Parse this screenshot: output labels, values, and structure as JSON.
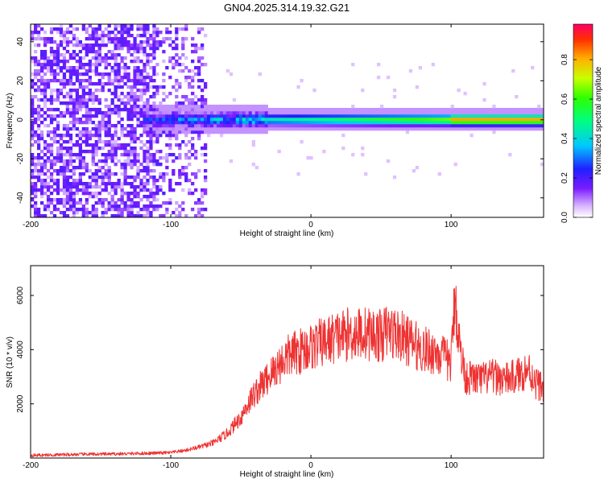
{
  "chart_data": [
    {
      "type": "heatmap",
      "title": "GN04.2025.314.19.32.G21",
      "xlabel": "Height of straight line (km)",
      "ylabel": "Frequency (Hz)",
      "xlim": [
        -200,
        166
      ],
      "ylim": [
        -50,
        49
      ],
      "xticks": [
        -200,
        -100,
        0,
        100
      ],
      "yticks": [
        -40,
        -20,
        0,
        20,
        40
      ],
      "colorbar": {
        "label": "Normalized spectral amplitude",
        "range": [
          0,
          0.98
        ],
        "ticks": [
          0.0,
          0.2,
          0.4,
          0.6,
          0.8
        ],
        "tick_labels": [
          "0.0",
          "0.2",
          "0.4",
          "0.6",
          "0.8"
        ],
        "colormap": "rainbow-white-violet-blue-cyan-green-yellow-red"
      },
      "features": {
        "signal_line_frequency_hz": 0,
        "noise_region_x": [
          -200,
          -75
        ],
        "signal_band_start_x": -120,
        "peak_amplitude_x": [
          100,
          166
        ]
      }
    },
    {
      "type": "line",
      "xlabel": "Height of straight line (km)",
      "ylabel": "SNR (10 * v/v)",
      "xlim": [
        -200,
        166
      ],
      "ylim": [
        0,
        7100
      ],
      "xticks": [
        -200,
        -100,
        0,
        100
      ],
      "yticks": [
        2000,
        4000,
        6000
      ],
      "color": "#ee3333",
      "series": [
        {
          "x": [
            -200,
            -180,
            -160,
            -140,
            -120,
            -100,
            -90,
            -80,
            -70,
            -60,
            -50,
            -45,
            -40,
            -35,
            -30,
            -25,
            -20,
            -15,
            -10,
            -5,
            0,
            10,
            20,
            30,
            40,
            50,
            55,
            60,
            70,
            80,
            90,
            95,
            100,
            103,
            105,
            110,
            120,
            130,
            140,
            150,
            155,
            160,
            166
          ],
          "values": [
            100,
            120,
            140,
            150,
            170,
            200,
            280,
            400,
            550,
            900,
            1500,
            2000,
            2400,
            2700,
            3000,
            3300,
            3600,
            3800,
            3900,
            4000,
            4100,
            4300,
            4500,
            4600,
            4600,
            4500,
            4700,
            4600,
            4300,
            4000,
            3900,
            3700,
            3500,
            6200,
            4500,
            3000,
            2900,
            3000,
            2900,
            3100,
            3300,
            2800,
            2600
          ]
        }
      ]
    }
  ]
}
